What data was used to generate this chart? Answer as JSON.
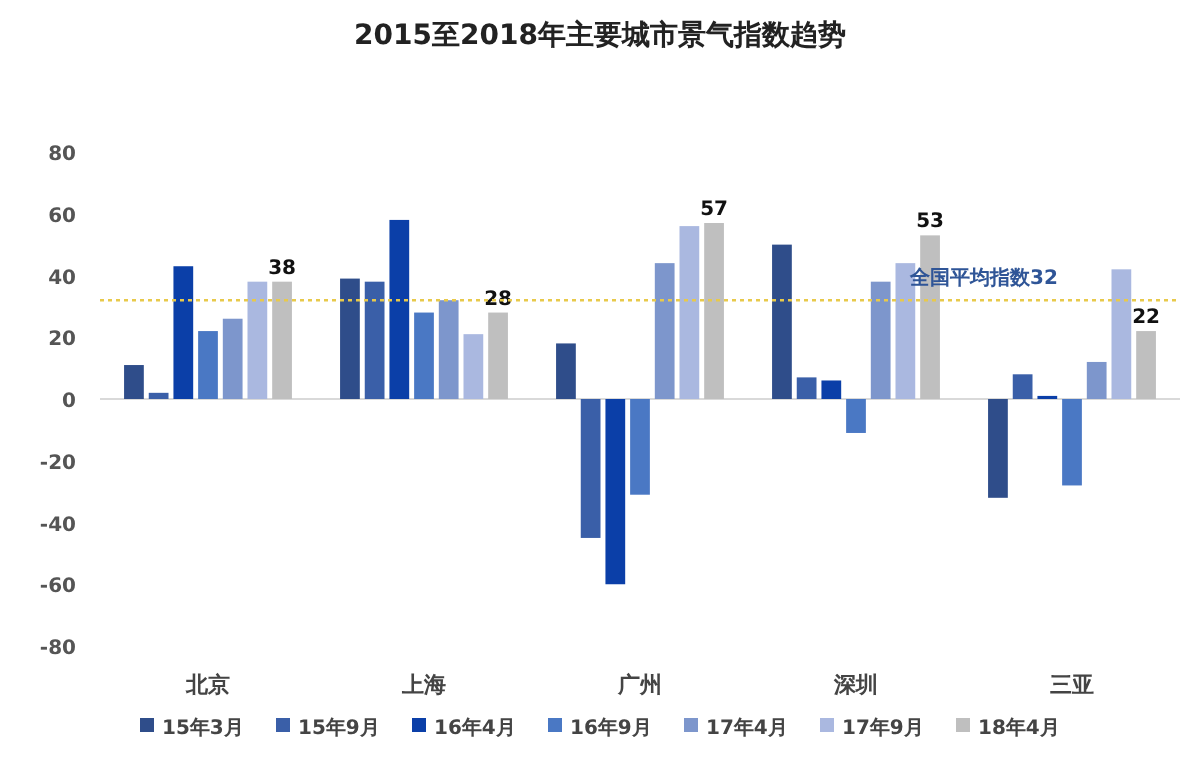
{
  "chart_data": {
    "type": "bar",
    "title": "2015至2018年主要城市景气指数趋势",
    "categories": [
      "北京",
      "上海",
      "广州",
      "深圳",
      "三亚"
    ],
    "series": [
      {
        "name": "15年3月",
        "color": "#2f4d8a",
        "values": [
          11,
          39,
          18,
          50,
          -32
        ]
      },
      {
        "name": "15年9月",
        "color": "#3a5fa8",
        "values": [
          2,
          38,
          -45,
          7,
          8
        ]
      },
      {
        "name": "16年4月",
        "color": "#0b3fa8",
        "values": [
          43,
          58,
          -60,
          6,
          1
        ]
      },
      {
        "name": "16年9月",
        "color": "#4a78c4",
        "values": [
          22,
          28,
          -31,
          -11,
          -28
        ]
      },
      {
        "name": "17年4月",
        "color": "#7d96cc",
        "values": [
          26,
          32,
          44,
          38,
          12
        ]
      },
      {
        "name": "17年9月",
        "color": "#aab8e0",
        "values": [
          38,
          21,
          56,
          44,
          42
        ]
      },
      {
        "name": "18年4月",
        "color": "#bfbfbf",
        "values": [
          38,
          28,
          57,
          53,
          22
        ],
        "value_labels": [
          "38",
          "28",
          "57",
          "53",
          "22"
        ]
      }
    ],
    "ylim": [
      -80,
      80
    ],
    "yticks": [
      -80,
      -60,
      -40,
      -20,
      0,
      20,
      40,
      60,
      80
    ],
    "ref_lines": [
      {
        "axis": "y",
        "value": 32,
        "label": "全国平均指数32",
        "color": "#e8c94a",
        "line_style": "dotted"
      }
    ],
    "legend": "bottom"
  }
}
